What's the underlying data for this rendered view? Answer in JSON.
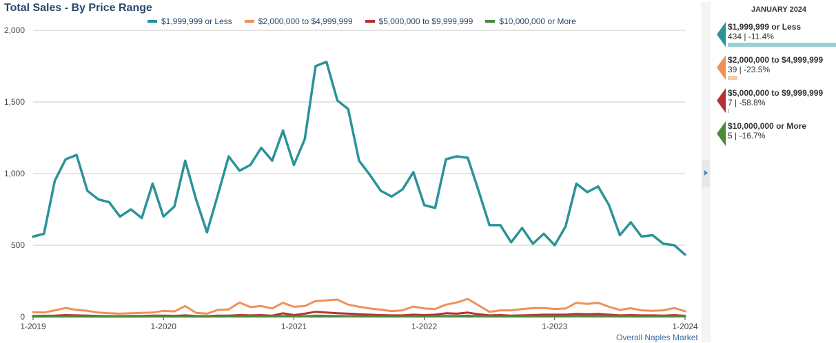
{
  "chart_data": {
    "type": "line",
    "title": "Total Sales - By Price Range",
    "xlabel": "",
    "ylabel": "",
    "x_start": "2019-01",
    "x_end": "2024-01",
    "x_ticks": [
      "1-2019",
      "1-2020",
      "1-2021",
      "1-2022",
      "1-2023",
      "1-2024"
    ],
    "y_ticks": [
      "0",
      "500",
      "1,000",
      "1,500",
      "2,000"
    ],
    "ylim": [
      0,
      2000
    ],
    "grid": true,
    "legend_position": "top",
    "series": [
      {
        "name": "$1,999,999 or Less",
        "color": "#2a9399",
        "values": [
          560,
          580,
          950,
          1100,
          1130,
          880,
          820,
          800,
          700,
          750,
          690,
          930,
          700,
          770,
          1090,
          820,
          590,
          850,
          1120,
          1020,
          1060,
          1180,
          1090,
          1300,
          1060,
          1240,
          1750,
          1780,
          1510,
          1450,
          1090,
          990,
          880,
          840,
          890,
          1010,
          780,
          760,
          1100,
          1120,
          1110,
          880,
          640,
          640,
          520,
          620,
          510,
          580,
          500,
          630,
          930,
          870,
          910,
          780,
          570,
          660,
          560,
          570,
          510,
          500,
          434
        ]
      },
      {
        "name": "$2,000,000 to $4,999,999",
        "color": "#ef9157",
        "values": [
          32,
          30,
          45,
          62,
          48,
          42,
          30,
          25,
          22,
          25,
          28,
          30,
          42,
          38,
          75,
          28,
          22,
          48,
          52,
          100,
          68,
          75,
          58,
          98,
          70,
          75,
          110,
          115,
          120,
          85,
          70,
          58,
          50,
          40,
          45,
          72,
          58,
          55,
          85,
          100,
          125,
          80,
          35,
          45,
          45,
          55,
          60,
          62,
          55,
          58,
          98,
          90,
          98,
          70,
          48,
          60,
          45,
          42,
          45,
          62,
          39
        ]
      },
      {
        "name": "$5,000,000 to $9,999,999",
        "color": "#b53232",
        "values": [
          6,
          7,
          8,
          12,
          10,
          8,
          6,
          5,
          5,
          6,
          6,
          8,
          8,
          7,
          10,
          6,
          5,
          8,
          8,
          12,
          10,
          12,
          8,
          25,
          12,
          22,
          35,
          30,
          25,
          22,
          18,
          15,
          12,
          10,
          10,
          15,
          12,
          15,
          25,
          22,
          30,
          18,
          10,
          12,
          8,
          10,
          12,
          15,
          15,
          15,
          20,
          18,
          20,
          15,
          10,
          12,
          10,
          10,
          8,
          12,
          7
        ]
      },
      {
        "name": "$10,000,000 or More",
        "color": "#4e8a3a",
        "values": [
          2,
          2,
          3,
          3,
          3,
          2,
          2,
          2,
          2,
          2,
          2,
          3,
          3,
          2,
          3,
          2,
          2,
          3,
          3,
          4,
          3,
          4,
          3,
          6,
          4,
          5,
          8,
          7,
          6,
          5,
          4,
          4,
          3,
          3,
          3,
          4,
          3,
          4,
          6,
          6,
          8,
          5,
          3,
          3,
          3,
          3,
          4,
          4,
          4,
          4,
          5,
          5,
          6,
          4,
          3,
          3,
          3,
          3,
          3,
          4,
          5
        ]
      }
    ]
  },
  "footer_link": "Overall Naples Market",
  "panel": {
    "month": "JANUARY 2024",
    "items": [
      {
        "name": "$1,999,999 or Less",
        "stats": "434 | -11.4%",
        "color": "#2a9399",
        "bar_color": "#9bcfd2",
        "bar_fraction": 1.0
      },
      {
        "name": "$2,000,000 to $4,999,999",
        "stats": "39 | -23.5%",
        "color": "#ef9157",
        "bar_color": "#f6c7a8",
        "bar_fraction": 0.09
      },
      {
        "name": "$5,000,000 to $9,999,999",
        "stats": "7 | -58.8%",
        "color": "#b53232",
        "bar_color": "#cccccc",
        "bar_fraction": 0.01
      },
      {
        "name": "$10,000,000 or More",
        "stats": "5 | -16.7%",
        "color": "#4e8a3a",
        "bar_color": "#dddddd",
        "bar_fraction": 0.0
      }
    ]
  }
}
